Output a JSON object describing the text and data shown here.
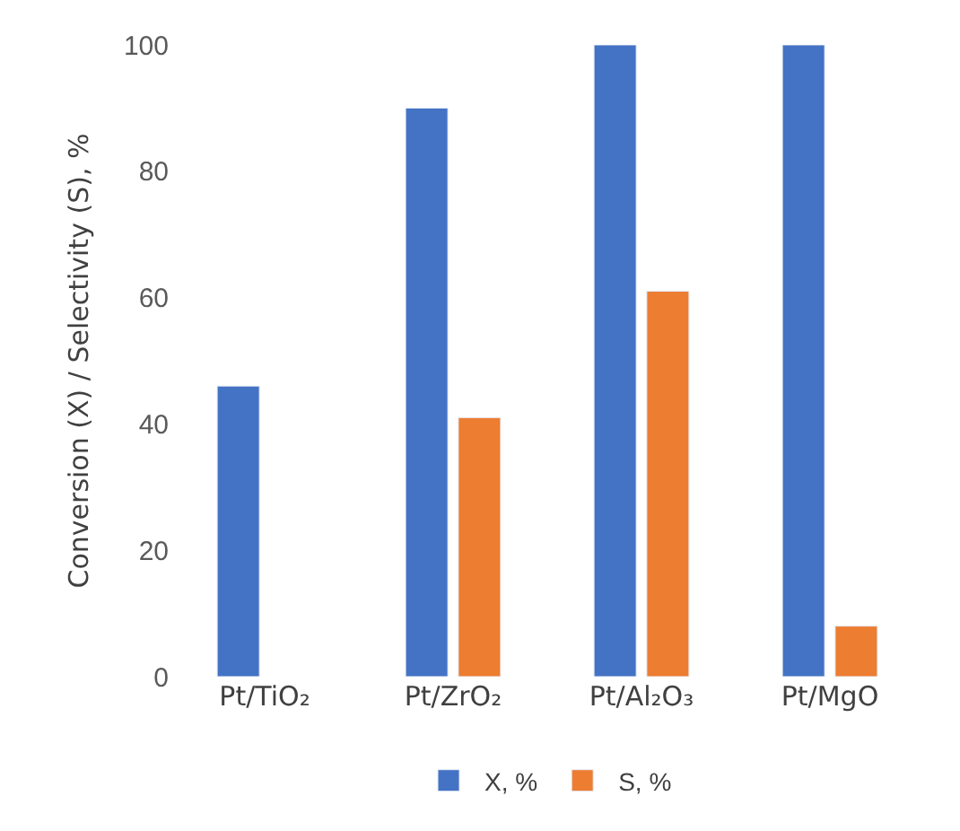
{
  "chart_data": {
    "type": "bar",
    "ylabel": "Conversion (X) / Selectivity (S), %",
    "categories": [
      "Pt/TiO₂",
      "Pt/ZrO₂",
      "Pt/Al₂O₃",
      "Pt/MgO"
    ],
    "series": [
      {
        "name": "X, %",
        "color": "#4472c4",
        "values": [
          46,
          90,
          100,
          100
        ]
      },
      {
        "name": "S, %",
        "color": "#ed7d31",
        "values": [
          null,
          41,
          61,
          8
        ]
      }
    ],
    "ylim": [
      0,
      100
    ],
    "yticks": [
      0,
      20,
      40,
      60,
      80,
      100
    ],
    "legend": "bottom"
  }
}
